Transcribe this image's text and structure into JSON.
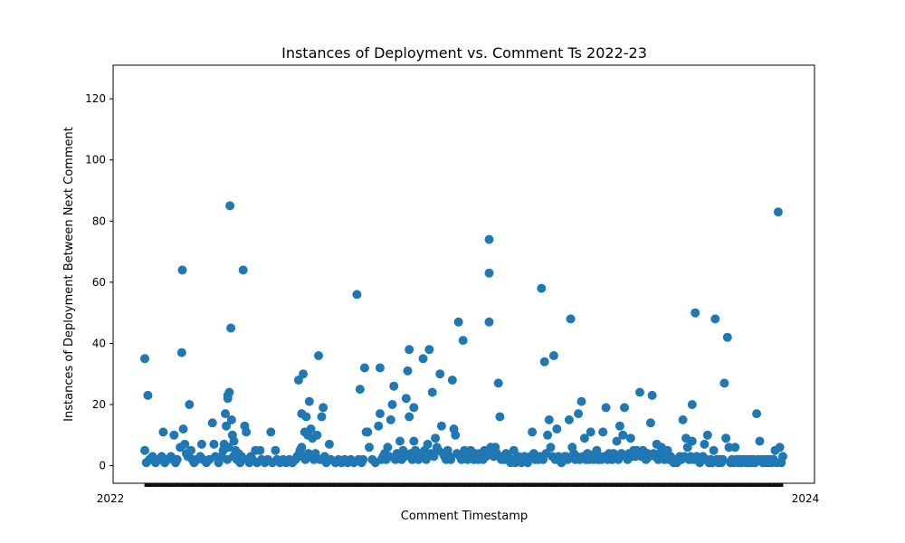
{
  "chart_data": {
    "type": "scatter",
    "title": "Instances of Deployment vs. Comment Ts 2022-23",
    "xlabel": "Comment Timestamp",
    "ylabel": "Instances of Deployment Between Next Comment",
    "ylim": [
      -5.75,
      131
    ],
    "yticks": [
      0,
      20,
      40,
      60,
      80,
      100,
      120
    ],
    "x_category_count": 1000,
    "x_tick_label_first": "2022",
    "x_tick_label_last": "2024",
    "color": "#1f77b4",
    "grid": false,
    "legend": "none",
    "points": [
      [
        0,
        5
      ],
      [
        0,
        35
      ],
      [
        10,
        23
      ],
      [
        60,
        11
      ],
      [
        95,
        10
      ],
      [
        120,
        37
      ],
      [
        122,
        64
      ],
      [
        130,
        7
      ],
      [
        145,
        20
      ],
      [
        155,
        2
      ],
      [
        185,
        7
      ],
      [
        220,
        14
      ],
      [
        225,
        7
      ],
      [
        258,
        7
      ],
      [
        262,
        17
      ],
      [
        265,
        13
      ],
      [
        270,
        22
      ],
      [
        270,
        23
      ],
      [
        275,
        24
      ],
      [
        277,
        85
      ],
      [
        280,
        45
      ],
      [
        282,
        15
      ],
      [
        285,
        10
      ],
      [
        290,
        8
      ],
      [
        320,
        64
      ],
      [
        325,
        13
      ],
      [
        330,
        11
      ],
      [
        360,
        5
      ],
      [
        375,
        5
      ],
      [
        410,
        11
      ],
      [
        425,
        5
      ],
      [
        500,
        28
      ],
      [
        505,
        5
      ],
      [
        510,
        6
      ],
      [
        510,
        17
      ],
      [
        515,
        30
      ],
      [
        520,
        11
      ],
      [
        525,
        16
      ],
      [
        530,
        10
      ],
      [
        535,
        21
      ],
      [
        540,
        12
      ],
      [
        545,
        9
      ],
      [
        560,
        10
      ],
      [
        565,
        36
      ],
      [
        575,
        16
      ],
      [
        580,
        19
      ],
      [
        600,
        7
      ],
      [
        690,
        56
      ],
      [
        700,
        25
      ],
      [
        715,
        32
      ],
      [
        720,
        11
      ],
      [
        725,
        11
      ],
      [
        730,
        6
      ],
      [
        760,
        13
      ],
      [
        765,
        17
      ],
      [
        765,
        32
      ],
      [
        790,
        6
      ],
      [
        800,
        15
      ],
      [
        805,
        20
      ],
      [
        810,
        26
      ],
      [
        830,
        8
      ],
      [
        850,
        22
      ],
      [
        855,
        31
      ],
      [
        860,
        38
      ],
      [
        860,
        16
      ],
      [
        875,
        19
      ],
      [
        875,
        8
      ],
      [
        905,
        35
      ],
      [
        920,
        7
      ],
      [
        925,
        38
      ],
      [
        935,
        24
      ],
      [
        945,
        9
      ],
      [
        950,
        6
      ],
      [
        960,
        30
      ],
      [
        965,
        13
      ],
      [
        1000,
        28
      ],
      [
        1005,
        12
      ],
      [
        1010,
        10
      ],
      [
        1020,
        47
      ],
      [
        1035,
        41
      ],
      [
        1120,
        74
      ],
      [
        1120,
        63
      ],
      [
        1120,
        47
      ],
      [
        1140,
        6
      ],
      [
        1150,
        27
      ],
      [
        1155,
        16
      ],
      [
        1200,
        5
      ],
      [
        1260,
        11
      ],
      [
        1290,
        58
      ],
      [
        1300,
        34
      ],
      [
        1310,
        10
      ],
      [
        1315,
        15
      ],
      [
        1320,
        6
      ],
      [
        1330,
        36
      ],
      [
        1340,
        12
      ],
      [
        1370,
        3
      ],
      [
        1380,
        15
      ],
      [
        1385,
        48
      ],
      [
        1390,
        6
      ],
      [
        1410,
        17
      ],
      [
        1420,
        21
      ],
      [
        1430,
        9
      ],
      [
        1450,
        11
      ],
      [
        1470,
        5
      ],
      [
        1490,
        11
      ],
      [
        1500,
        19
      ],
      [
        1535,
        8
      ],
      [
        1545,
        13
      ],
      [
        1555,
        10
      ],
      [
        1560,
        19
      ],
      [
        1580,
        9
      ],
      [
        1600,
        5
      ],
      [
        1610,
        24
      ],
      [
        1645,
        14
      ],
      [
        1650,
        23
      ],
      [
        1665,
        7
      ],
      [
        1680,
        6
      ],
      [
        1700,
        5
      ],
      [
        1750,
        15
      ],
      [
        1760,
        9
      ],
      [
        1765,
        6
      ],
      [
        1780,
        20
      ],
      [
        1780,
        8
      ],
      [
        1790,
        50
      ],
      [
        1820,
        7
      ],
      [
        1830,
        10
      ],
      [
        1850,
        5
      ],
      [
        1855,
        48
      ],
      [
        1885,
        27
      ],
      [
        1890,
        9
      ],
      [
        1895,
        42
      ],
      [
        1900,
        6
      ],
      [
        1920,
        6
      ],
      [
        1950,
        2
      ],
      [
        1960,
        2
      ],
      [
        1990,
        17
      ],
      [
        2000,
        8
      ],
      [
        2005,
        2
      ],
      [
        2050,
        5
      ],
      [
        2060,
        83
      ],
      [
        2065,
        6
      ],
      [
        2070,
        1
      ],
      [
        2075,
        3
      ],
      [
        5,
        1
      ],
      [
        15,
        2
      ],
      [
        25,
        3
      ],
      [
        35,
        1
      ],
      [
        45,
        2
      ],
      [
        55,
        3
      ],
      [
        65,
        1
      ],
      [
        75,
        2
      ],
      [
        85,
        3
      ],
      [
        100,
        1
      ],
      [
        105,
        2
      ],
      [
        115,
        6
      ],
      [
        125,
        12
      ],
      [
        135,
        4
      ],
      [
        140,
        3
      ],
      [
        150,
        5
      ],
      [
        160,
        1
      ],
      [
        170,
        2
      ],
      [
        180,
        3
      ],
      [
        190,
        2
      ],
      [
        200,
        1
      ],
      [
        210,
        2
      ],
      [
        230,
        3
      ],
      [
        240,
        1
      ],
      [
        250,
        3
      ],
      [
        255,
        5
      ],
      [
        268,
        2
      ],
      [
        272,
        6
      ],
      [
        288,
        3
      ],
      [
        295,
        5
      ],
      [
        300,
        2
      ],
      [
        305,
        4
      ],
      [
        310,
        1
      ],
      [
        315,
        3
      ],
      [
        335,
        2
      ],
      [
        340,
        1
      ],
      [
        345,
        3
      ],
      [
        350,
        2
      ],
      [
        365,
        1
      ],
      [
        380,
        2
      ],
      [
        390,
        1
      ],
      [
        400,
        2
      ],
      [
        415,
        1
      ],
      [
        430,
        2
      ],
      [
        440,
        1
      ],
      [
        450,
        2
      ],
      [
        460,
        1
      ],
      [
        470,
        2
      ],
      [
        480,
        1
      ],
      [
        490,
        2
      ],
      [
        495,
        3
      ],
      [
        502,
        4
      ],
      [
        512,
        3
      ],
      [
        522,
        2
      ],
      [
        532,
        4
      ],
      [
        542,
        3
      ],
      [
        550,
        2
      ],
      [
        555,
        4
      ],
      [
        570,
        2
      ],
      [
        585,
        3
      ],
      [
        590,
        1
      ],
      [
        605,
        2
      ],
      [
        620,
        1
      ],
      [
        630,
        2
      ],
      [
        640,
        1
      ],
      [
        650,
        2
      ],
      [
        660,
        1
      ],
      [
        670,
        2
      ],
      [
        680,
        1
      ],
      [
        695,
        2
      ],
      [
        705,
        1
      ],
      [
        710,
        2
      ],
      [
        740,
        2
      ],
      [
        750,
        1
      ],
      [
        770,
        2
      ],
      [
        775,
        3
      ],
      [
        780,
        4
      ],
      [
        785,
        2
      ],
      [
        795,
        3
      ],
      [
        815,
        2
      ],
      [
        820,
        4
      ],
      [
        825,
        3
      ],
      [
        835,
        2
      ],
      [
        840,
        5
      ],
      [
        845,
        3
      ],
      [
        865,
        4
      ],
      [
        870,
        2
      ],
      [
        880,
        5
      ],
      [
        885,
        3
      ],
      [
        890,
        2
      ],
      [
        895,
        4
      ],
      [
        900,
        3
      ],
      [
        910,
        5
      ],
      [
        915,
        2
      ],
      [
        930,
        4
      ],
      [
        940,
        3
      ],
      [
        955,
        5
      ],
      [
        970,
        4
      ],
      [
        975,
        3
      ],
      [
        980,
        2
      ],
      [
        985,
        5
      ],
      [
        990,
        3
      ],
      [
        995,
        2
      ],
      [
        1015,
        4
      ],
      [
        1025,
        3
      ],
      [
        1030,
        2
      ],
      [
        1040,
        5
      ],
      [
        1045,
        3
      ],
      [
        1050,
        2
      ],
      [
        1055,
        4
      ],
      [
        1060,
        5
      ],
      [
        1065,
        3
      ],
      [
        1070,
        2
      ],
      [
        1075,
        4
      ],
      [
        1080,
        3
      ],
      [
        1085,
        2
      ],
      [
        1090,
        4
      ],
      [
        1095,
        3
      ],
      [
        1100,
        2
      ],
      [
        1105,
        5
      ],
      [
        1110,
        3
      ],
      [
        1115,
        4
      ],
      [
        1125,
        6
      ],
      [
        1130,
        5
      ],
      [
        1135,
        3
      ],
      [
        1145,
        4
      ],
      [
        1160,
        2
      ],
      [
        1165,
        3
      ],
      [
        1170,
        2
      ],
      [
        1175,
        4
      ],
      [
        1180,
        3
      ],
      [
        1185,
        2
      ],
      [
        1190,
        1
      ],
      [
        1195,
        2
      ],
      [
        1205,
        1
      ],
      [
        1210,
        2
      ],
      [
        1215,
        3
      ],
      [
        1220,
        2
      ],
      [
        1225,
        1
      ],
      [
        1230,
        2
      ],
      [
        1235,
        3
      ],
      [
        1240,
        2
      ],
      [
        1245,
        1
      ],
      [
        1250,
        2
      ],
      [
        1255,
        3
      ],
      [
        1265,
        4
      ],
      [
        1270,
        2
      ],
      [
        1275,
        3
      ],
      [
        1280,
        2
      ],
      [
        1285,
        3
      ],
      [
        1295,
        2
      ],
      [
        1305,
        4
      ],
      [
        1325,
        3
      ],
      [
        1335,
        2
      ],
      [
        1345,
        3
      ],
      [
        1350,
        2
      ],
      [
        1355,
        1
      ],
      [
        1360,
        2
      ],
      [
        1365,
        3
      ],
      [
        1375,
        2
      ],
      [
        1395,
        4
      ],
      [
        1400,
        2
      ],
      [
        1405,
        3
      ],
      [
        1415,
        2
      ],
      [
        1425,
        3
      ],
      [
        1435,
        2
      ],
      [
        1440,
        4
      ],
      [
        1445,
        2
      ],
      [
        1455,
        3
      ],
      [
        1460,
        2
      ],
      [
        1465,
        4
      ],
      [
        1475,
        2
      ],
      [
        1480,
        3
      ],
      [
        1485,
        2
      ],
      [
        1495,
        3
      ],
      [
        1505,
        2
      ],
      [
        1510,
        4
      ],
      [
        1515,
        3
      ],
      [
        1520,
        2
      ],
      [
        1525,
        4
      ],
      [
        1530,
        3
      ],
      [
        1540,
        2
      ],
      [
        1550,
        4
      ],
      [
        1565,
        3
      ],
      [
        1570,
        2
      ],
      [
        1575,
        4
      ],
      [
        1585,
        3
      ],
      [
        1590,
        5
      ],
      [
        1595,
        3
      ],
      [
        1605,
        4
      ],
      [
        1615,
        3
      ],
      [
        1620,
        5
      ],
      [
        1625,
        3
      ],
      [
        1630,
        2
      ],
      [
        1635,
        4
      ],
      [
        1640,
        3
      ],
      [
        1655,
        4
      ],
      [
        1660,
        3
      ],
      [
        1670,
        2
      ],
      [
        1675,
        4
      ],
      [
        1685,
        3
      ],
      [
        1690,
        2
      ],
      [
        1695,
        3
      ],
      [
        1705,
        2
      ],
      [
        1710,
        3
      ],
      [
        1715,
        2
      ],
      [
        1720,
        1
      ],
      [
        1725,
        2
      ],
      [
        1730,
        1
      ],
      [
        1735,
        2
      ],
      [
        1740,
        3
      ],
      [
        1745,
        2
      ],
      [
        1755,
        3
      ],
      [
        1770,
        2
      ],
      [
        1775,
        3
      ],
      [
        1785,
        2
      ],
      [
        1795,
        3
      ],
      [
        1800,
        2
      ],
      [
        1805,
        1
      ],
      [
        1810,
        2
      ],
      [
        1815,
        3
      ],
      [
        1825,
        2
      ],
      [
        1835,
        1
      ],
      [
        1840,
        2
      ],
      [
        1845,
        1
      ],
      [
        1860,
        2
      ],
      [
        1865,
        1
      ],
      [
        1870,
        2
      ],
      [
        1875,
        1
      ],
      [
        1880,
        2
      ],
      [
        1905,
        1
      ],
      [
        1910,
        2
      ],
      [
        1915,
        1
      ],
      [
        1925,
        2
      ],
      [
        1930,
        1
      ],
      [
        1935,
        2
      ],
      [
        1940,
        1
      ],
      [
        1945,
        2
      ],
      [
        1955,
        1
      ],
      [
        1965,
        1
      ],
      [
        1970,
        2
      ],
      [
        1975,
        1
      ],
      [
        1980,
        2
      ],
      [
        1985,
        1
      ],
      [
        1995,
        2
      ],
      [
        2010,
        1
      ],
      [
        2015,
        2
      ],
      [
        2020,
        1
      ],
      [
        2025,
        2
      ],
      [
        2030,
        1
      ],
      [
        2035,
        2
      ],
      [
        2040,
        1
      ],
      [
        2045,
        2
      ],
      [
        2055,
        1
      ]
    ],
    "x_domain": [
      0,
      2075
    ]
  }
}
